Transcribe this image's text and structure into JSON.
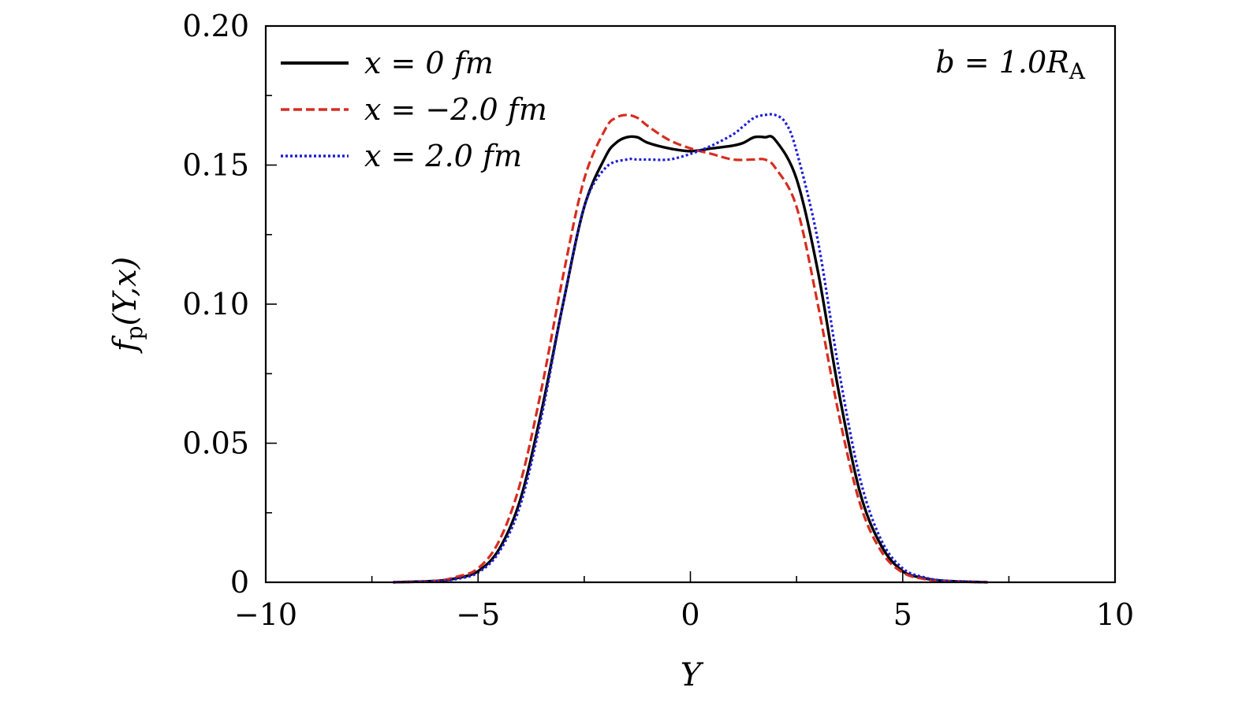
{
  "chart_data": {
    "type": "line",
    "xlabel": "Y",
    "ylabel": "f_p(Y,x)",
    "ylabel_parts": {
      "main": "f",
      "sub": "p",
      "args": "(Y,x)"
    },
    "xlim": [
      -10,
      10
    ],
    "ylim": [
      0,
      0.2
    ],
    "xticks": [
      -10,
      -5,
      0,
      5,
      10
    ],
    "xtick_labels": [
      "−10",
      "−5",
      "0",
      "5",
      "10"
    ],
    "yticks": [
      0,
      0.05,
      0.1,
      0.15,
      0.2
    ],
    "ytick_labels": [
      "0",
      "0.05",
      "0.10",
      "0.15",
      "0.20"
    ],
    "grid": false,
    "legend_position": "top-left",
    "annotation": {
      "text": "b = 1.0R",
      "sub": "A",
      "position": "top-right"
    },
    "series": [
      {
        "name": "x = 0 fm",
        "color": "#000000",
        "style": "solid",
        "x": [
          -7,
          -6,
          -5.5,
          -5,
          -4.5,
          -4,
          -3.5,
          -3,
          -2.5,
          -2,
          -1.75,
          -1.5,
          -1.25,
          -1,
          -0.5,
          0,
          0.5,
          1,
          1.25,
          1.5,
          1.75,
          2,
          2.5,
          3,
          3.5,
          4,
          4.5,
          5,
          5.5,
          6,
          7
        ],
        "y": [
          0,
          0.0005,
          0.0015,
          0.004,
          0.012,
          0.03,
          0.062,
          0.1,
          0.135,
          0.153,
          0.158,
          0.16,
          0.16,
          0.158,
          0.156,
          0.155,
          0.156,
          0.157,
          0.158,
          0.16,
          0.16,
          0.159,
          0.145,
          0.112,
          0.068,
          0.032,
          0.013,
          0.004,
          0.0015,
          0.0005,
          0
        ]
      },
      {
        "name": "x = −2.0 fm",
        "color": "#d62d20",
        "style": "dashed",
        "x": [
          -7,
          -6,
          -5.5,
          -5,
          -4.5,
          -4,
          -3.5,
          -3,
          -2.5,
          -2,
          -1.75,
          -1.5,
          -1.25,
          -1,
          -0.5,
          0,
          0.5,
          1,
          1.5,
          1.75,
          2,
          2.5,
          3,
          3.5,
          4,
          4.5,
          5,
          5.5,
          6,
          7
        ],
        "y": [
          0,
          0.0005,
          0.002,
          0.005,
          0.015,
          0.036,
          0.07,
          0.11,
          0.145,
          0.163,
          0.167,
          0.168,
          0.167,
          0.164,
          0.159,
          0.156,
          0.154,
          0.152,
          0.152,
          0.152,
          0.149,
          0.135,
          0.1,
          0.06,
          0.028,
          0.011,
          0.0035,
          0.0012,
          0.0004,
          0
        ]
      },
      {
        "name": "x = 2.0 fm",
        "color": "#1f1fd6",
        "style": "dotted",
        "x": [
          -7,
          -6,
          -5.5,
          -5,
          -4.5,
          -4,
          -3.5,
          -3,
          -2.5,
          -2,
          -1.5,
          -1.25,
          -1,
          -0.5,
          0,
          0.5,
          1,
          1.25,
          1.5,
          1.75,
          2,
          2.25,
          2.5,
          3,
          3.5,
          4,
          4.5,
          5,
          5.5,
          6,
          7
        ],
        "y": [
          0,
          0.0004,
          0.0012,
          0.0035,
          0.011,
          0.028,
          0.06,
          0.1,
          0.135,
          0.149,
          0.152,
          0.152,
          0.152,
          0.152,
          0.154,
          0.157,
          0.161,
          0.164,
          0.167,
          0.168,
          0.168,
          0.165,
          0.155,
          0.123,
          0.076,
          0.037,
          0.015,
          0.005,
          0.0018,
          0.0006,
          0
        ]
      }
    ]
  }
}
